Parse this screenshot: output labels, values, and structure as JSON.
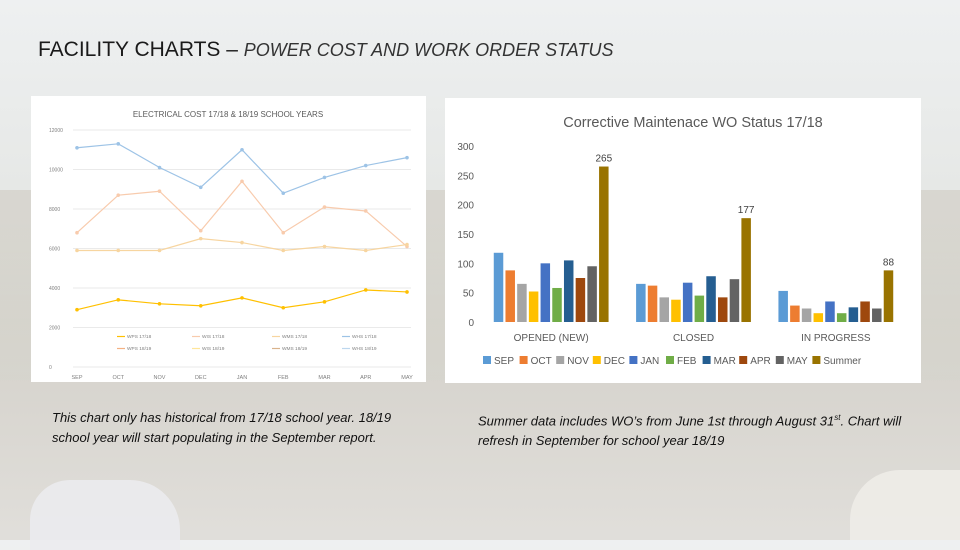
{
  "slide": {
    "title_main": "FACILITY CHARTS – ",
    "title_sub": "POWER COST AND WORK ORDER STATUS",
    "note_left": "This chart only has historical from 17/18 school year. 18/19 school year will start populating in the September report.",
    "note_right_a": "Summer data includes WO’s from June 1st through August 31",
    "note_right_sup": "st",
    "note_right_b": ". Chart will refresh in September for school year 18/19"
  },
  "chart_data": [
    {
      "type": "line",
      "title": "ELECTRICAL COST  17/18  & 18/19 SCHOOL YEARS",
      "categories": [
        "SEP",
        "OCT",
        "NOV",
        "DEC",
        "JAN",
        "FEB",
        "MAR",
        "APR",
        "MAY"
      ],
      "ylim": [
        0,
        12000
      ],
      "yticks": [
        "0",
        "2000",
        "4000",
        "6000",
        "8000",
        "10000",
        "12000"
      ],
      "grid": true,
      "legend_position": "bottom",
      "series": [
        {
          "name": "WPS 17/18",
          "color": "#ffc000",
          "values": [
            2900,
            3400,
            3200,
            3100,
            3500,
            3000,
            3300,
            3900,
            3800
          ]
        },
        {
          "name": "WPS 18/19",
          "color": "#f4b183",
          "values": [
            null,
            null,
            null,
            null,
            null,
            null,
            null,
            null,
            null
          ]
        },
        {
          "name": "WIS 17/18",
          "color": "#f8cbad",
          "values": [
            6800,
            8700,
            8900,
            6900,
            9400,
            6800,
            8100,
            7900,
            6100
          ]
        },
        {
          "name": "WIS 18/19",
          "color": "#ffe699",
          "values": [
            null,
            null,
            null,
            null,
            null,
            null,
            null,
            null,
            null
          ]
        },
        {
          "name": "WMS 17/18",
          "color": "#f7d5a0",
          "values": [
            5900,
            5900,
            5900,
            6500,
            6300,
            5900,
            6100,
            5900,
            6200
          ]
        },
        {
          "name": "WMS 18/19",
          "color": "#d9b38c",
          "values": [
            null,
            null,
            null,
            null,
            null,
            null,
            null,
            null,
            null
          ]
        },
        {
          "name": "WHS 17/18",
          "color": "#9dc3e6",
          "values": [
            11100,
            11300,
            10100,
            9100,
            11000,
            8800,
            9600,
            10200,
            10600
          ]
        },
        {
          "name": "WHS 18/19",
          "color": "#bdd7ee",
          "values": [
            null,
            null,
            null,
            null,
            null,
            null,
            null,
            null,
            null
          ]
        }
      ]
    },
    {
      "type": "bar",
      "title": "Corrective Maintenace WO Status 17/18",
      "categories": [
        "OPENED (NEW)",
        "CLOSED",
        "IN PROGRESS"
      ],
      "ylim": [
        0,
        300
      ],
      "yticks": [
        "0",
        "50",
        "100",
        "150",
        "200",
        "250",
        "300"
      ],
      "grid": false,
      "legend_position": "bottom",
      "series": [
        {
          "name": "SEP",
          "color": "#5b9bd5",
          "values": [
            118,
            65,
            53
          ]
        },
        {
          "name": "OCT",
          "color": "#ed7d31",
          "values": [
            88,
            62,
            28
          ]
        },
        {
          "name": "NOV",
          "color": "#a5a5a5",
          "values": [
            65,
            42,
            23
          ]
        },
        {
          "name": "DEC",
          "color": "#ffc000",
          "values": [
            52,
            38,
            15
          ]
        },
        {
          "name": "JAN",
          "color": "#4472c4",
          "values": [
            100,
            67,
            35
          ]
        },
        {
          "name": "FEB",
          "color": "#70ad47",
          "values": [
            58,
            45,
            15
          ]
        },
        {
          "name": "MAR",
          "color": "#255e91",
          "values": [
            105,
            78,
            25
          ]
        },
        {
          "name": "APR",
          "color": "#9e480e",
          "values": [
            75,
            42,
            35
          ]
        },
        {
          "name": "MAY",
          "color": "#636363",
          "values": [
            95,
            73,
            23
          ]
        },
        {
          "name": "Summer",
          "color": "#997300",
          "values": [
            265,
            177,
            88
          ]
        }
      ],
      "data_labels": [
        {
          "series": "Summer",
          "category": "OPENED (NEW)",
          "text": "265"
        },
        {
          "series": "Summer",
          "category": "CLOSED",
          "text": "177"
        },
        {
          "series": "Summer",
          "category": "IN PROGRESS",
          "text": "88"
        }
      ]
    }
  ]
}
